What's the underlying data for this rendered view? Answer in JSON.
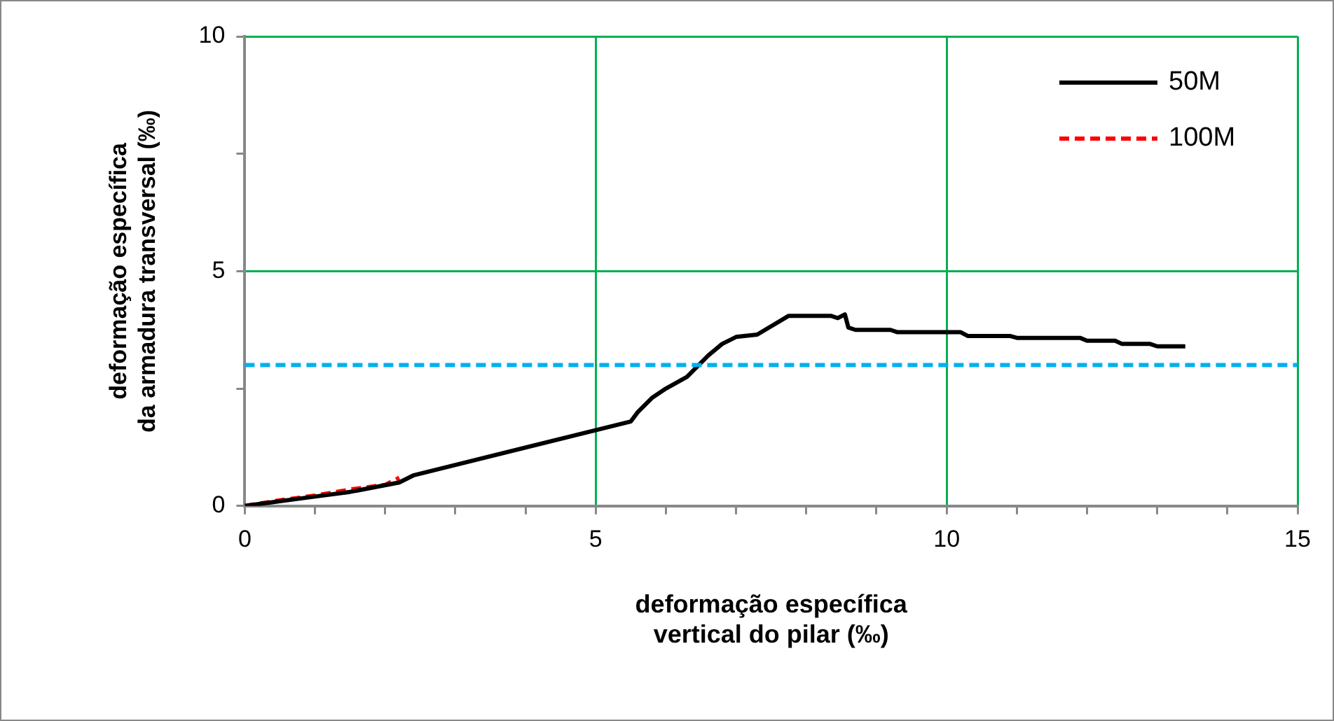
{
  "chart_data": {
    "type": "line",
    "xlabel": "deformação específica\nvertical do pilar (‰)",
    "ylabel": "deformação específica\nda armadura transversal (‰)",
    "series": [
      {
        "name": "50M",
        "color": "#000000",
        "line_style": "solid",
        "x": [
          0,
          0.5,
          1,
          1.5,
          2.2,
          2.4,
          5.5,
          5.6,
          5.8,
          6.0,
          6.3,
          6.6,
          6.8,
          7.0,
          7.3,
          7.75,
          8.35,
          8.45,
          8.55,
          8.6,
          8.7,
          9.2,
          9.3,
          10.2,
          10.3,
          10.9,
          11.0,
          11.9,
          12.0,
          12.4,
          12.5,
          12.9,
          13.0,
          13.4
        ],
        "values": [
          0,
          0.1,
          0.2,
          0.3,
          0.5,
          0.65,
          1.8,
          2.0,
          2.3,
          2.5,
          2.75,
          3.2,
          3.45,
          3.6,
          3.65,
          4.05,
          4.05,
          4.0,
          4.08,
          3.8,
          3.75,
          3.75,
          3.7,
          3.7,
          3.62,
          3.62,
          3.58,
          3.58,
          3.52,
          3.52,
          3.45,
          3.45,
          3.4,
          3.4
        ]
      },
      {
        "name": "100M",
        "color": "#ff0000",
        "line_style": "dashed",
        "x": [
          0,
          0.5,
          1,
          1.5,
          2,
          2.2
        ],
        "values": [
          0,
          0.12,
          0.22,
          0.35,
          0.45,
          0.6
        ]
      }
    ],
    "ref_lines": [
      {
        "axis": "y",
        "value": 3,
        "color": "#00b0f0",
        "line_style": "dashed"
      }
    ],
    "xlim": [
      0,
      15
    ],
    "xticks": [
      0,
      {
        "value": 1,
        "label": null
      },
      {
        "value": 2,
        "label": null
      },
      {
        "value": 3,
        "label": null
      },
      {
        "value": 4,
        "label": null
      },
      5,
      {
        "value": 6,
        "label": null
      },
      {
        "value": 7,
        "label": null
      },
      {
        "value": 8,
        "label": null
      },
      {
        "value": 9,
        "label": null
      },
      10,
      {
        "value": 11,
        "label": null
      },
      {
        "value": 12,
        "label": null
      },
      {
        "value": 13,
        "label": null
      },
      {
        "value": 14,
        "label": null
      },
      15
    ],
    "ylim": [
      0,
      10
    ],
    "yticks": [
      0,
      {
        "value": 2.5,
        "label": null
      },
      5,
      {
        "value": 7.5,
        "label": null
      },
      10
    ],
    "grid": true,
    "legend": "top right",
    "marker": "none"
  }
}
